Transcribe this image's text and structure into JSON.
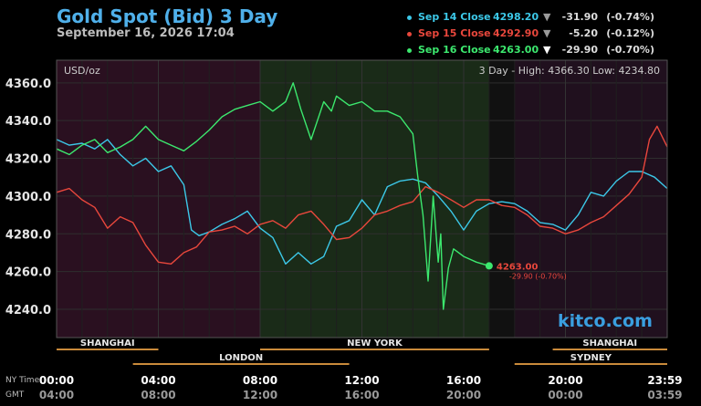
{
  "header": {
    "title": "Gold Spot (Bid) 3 Day",
    "subtitle": "September 16, 2026 17:04"
  },
  "legend": [
    {
      "label": "Sep 14 Close",
      "price": "4298.20",
      "arrow": "▼",
      "change": "-31.90",
      "pct": "(-0.74%)",
      "color": "#3cc8e8",
      "arrow_color": "#9a9a9a"
    },
    {
      "label": "Sep 15 Close",
      "price": "4292.90",
      "arrow": "▼",
      "change": "-5.20",
      "pct": "(-0.12%)",
      "color": "#e8473c",
      "arrow_color": "#9a9a9a"
    },
    {
      "label": "Sep 16 Close",
      "price": "4263.00",
      "arrow": "▼",
      "change": "-29.90",
      "pct": "(-0.70%)",
      "color": "#3ce86e",
      "arrow_color": "#ffffff"
    }
  ],
  "brand": "kitco.com",
  "chart_data": {
    "type": "line",
    "unit_label": "USD/oz",
    "stats": "3 Day - High: 4366.30   Low: 4234.80",
    "ylim": [
      4225,
      4372
    ],
    "xlim": [
      0,
      24
    ],
    "y_ticks": [
      4240,
      4260,
      4280,
      4300,
      4320,
      4340,
      4360
    ],
    "y_tick_labels": [
      "4240.0",
      "4260.0",
      "4280.0",
      "4300.0",
      "4320.0",
      "4340.0",
      "4360.0"
    ],
    "x_ticks": [
      0,
      4,
      8,
      12,
      16,
      20,
      23.98
    ],
    "x_labels_ny": [
      "00:00",
      "04:00",
      "08:00",
      "12:00",
      "16:00",
      "20:00",
      "23:59"
    ],
    "x_labels_gmt": [
      "04:00",
      "08:00",
      "12:00",
      "16:00",
      "20:00",
      "00:00",
      "03:59"
    ],
    "row_labels": [
      "NY Time",
      "GMT"
    ],
    "sessions": [
      {
        "name": "SHANGHAI",
        "start": 0,
        "end": 4
      },
      {
        "name": "LONDON",
        "start": 3,
        "end": 11.5
      },
      {
        "name": "NEW YORK",
        "start": 8,
        "end": 17
      },
      {
        "name": "SHANGHAI",
        "start": 19.5,
        "end": 24
      },
      {
        "name": "SYDNEY",
        "start": 18,
        "end": 24
      }
    ],
    "regions": [
      {
        "start": 0,
        "end": 8,
        "color": "#2a1020"
      },
      {
        "start": 8,
        "end": 17,
        "color": "#1a2b18"
      },
      {
        "start": 17,
        "end": 18,
        "color": "#111111"
      },
      {
        "start": 18,
        "end": 24,
        "color": "#20101e"
      }
    ],
    "series": [
      {
        "name": "Sep 14",
        "color": "#3cc8e8",
        "x": [
          0,
          0.5,
          1,
          1.5,
          2,
          2.5,
          3,
          3.5,
          4,
          4.5,
          5,
          5.3,
          5.6,
          6,
          6.5,
          7,
          7.5,
          8,
          8.5,
          9,
          9.5,
          10,
          10.5,
          11,
          11.5,
          12,
          12.5,
          13,
          13.5,
          14,
          14.5,
          15,
          15.5,
          16,
          16.5,
          17,
          17.5,
          18,
          18.5,
          19,
          19.5,
          20,
          20.5,
          21,
          21.5,
          22,
          22.5,
          23,
          23.5,
          24
        ],
        "y": [
          4330,
          4327,
          4328,
          4325,
          4330,
          4322,
          4316,
          4320,
          4313,
          4316,
          4306,
          4282,
          4279,
          4281,
          4285,
          4288,
          4292,
          4283,
          4278,
          4264,
          4270,
          4264,
          4268,
          4284,
          4287,
          4298,
          4290,
          4305,
          4308,
          4309,
          4307,
          4300,
          4292,
          4282,
          4292,
          4296,
          4297,
          4296,
          4292,
          4286,
          4285,
          4282,
          4290,
          4302,
          4300,
          4308,
          4313,
          4313,
          4310,
          4304
        ]
      },
      {
        "name": "Sep 15",
        "color": "#e8473c",
        "x": [
          0,
          0.5,
          1,
          1.5,
          2,
          2.5,
          3,
          3.5,
          4,
          4.5,
          5,
          5.5,
          6,
          6.5,
          7,
          7.5,
          8,
          8.5,
          9,
          9.5,
          10,
          10.5,
          11,
          11.5,
          12,
          12.5,
          13,
          13.5,
          14,
          14.5,
          15,
          15.5,
          16,
          16.5,
          17,
          17.5,
          18,
          18.5,
          19,
          19.5,
          20,
          20.5,
          21,
          21.5,
          22,
          22.5,
          23,
          23.3,
          23.6,
          24
        ],
        "y": [
          4302,
          4304,
          4298,
          4294,
          4283,
          4289,
          4286,
          4274,
          4265,
          4264,
          4270,
          4273,
          4281,
          4282,
          4284,
          4280,
          4285,
          4287,
          4283,
          4290,
          4292,
          4285,
          4277,
          4278,
          4283,
          4290,
          4292,
          4295,
          4297,
          4305,
          4302,
          4298,
          4294,
          4298,
          4298,
          4295,
          4294,
          4290,
          4284,
          4283,
          4280,
          4282,
          4286,
          4289,
          4295,
          4301,
          4310,
          4330,
          4337,
          4326
        ]
      },
      {
        "name": "Sep 16",
        "color": "#3ce86e",
        "x": [
          0,
          0.5,
          1,
          1.5,
          2,
          2.5,
          3,
          3.5,
          4,
          4.5,
          5,
          5.5,
          6,
          6.5,
          7,
          7.5,
          8,
          8.5,
          9,
          9.3,
          9.6,
          10,
          10.5,
          10.8,
          11,
          11.5,
          12,
          12.5,
          13,
          13.5,
          14,
          14.2,
          14.4,
          14.6,
          14.8,
          15,
          15.1,
          15.2,
          15.4,
          15.6,
          16,
          16.5,
          17
        ],
        "y": [
          4325,
          4322,
          4327,
          4330,
          4323,
          4326,
          4330,
          4337,
          4330,
          4327,
          4324,
          4329,
          4335,
          4342,
          4346,
          4348,
          4350,
          4345,
          4350,
          4360,
          4346,
          4330,
          4350,
          4345,
          4353,
          4348,
          4350,
          4345,
          4345,
          4342,
          4333,
          4310,
          4290,
          4255,
          4300,
          4265,
          4280,
          4240,
          4262,
          4272,
          4268,
          4265,
          4263
        ]
      }
    ],
    "end_marker": {
      "value": "4263.00",
      "note": "-29.90 (-0.70%)"
    }
  }
}
